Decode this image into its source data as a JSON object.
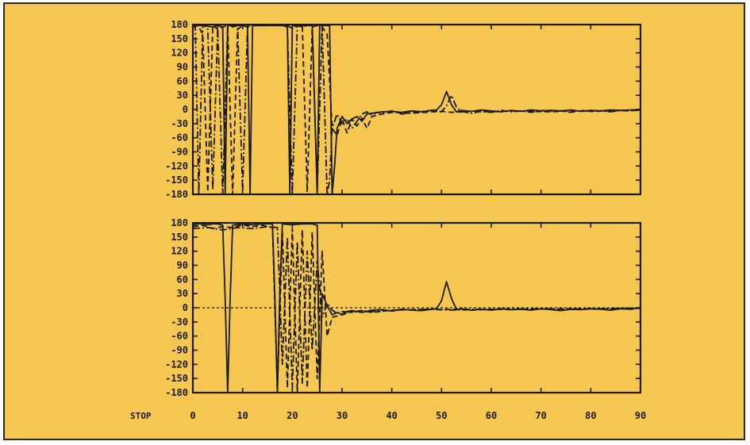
{
  "colors": {
    "background": "#f5c650",
    "ink": "#1b1b1b"
  },
  "status_label": "STOP",
  "chart_data": [
    {
      "type": "line",
      "title": "",
      "xlabel": "",
      "ylabel": "",
      "xlim": [
        0,
        90
      ],
      "ylim": [
        -180,
        180
      ],
      "x_ticks": [
        0,
        10,
        20,
        30,
        40,
        50,
        60,
        70,
        80,
        90
      ],
      "y_ticks": [
        180,
        150,
        120,
        90,
        60,
        30,
        0,
        -30,
        -60,
        -90,
        -120,
        -150,
        -180
      ],
      "y_tick_labels": [
        "180",
        "150",
        "120",
        "90",
        "60",
        "30",
        "0",
        "-30",
        "-60",
        "-90",
        "-120",
        "-150",
        "-180"
      ],
      "x_tick_labels_visible": false,
      "grid": false,
      "series": [
        {
          "style": "dash-dot",
          "x": [
            0,
            0.5,
            1.2,
            2,
            3,
            4,
            5,
            6,
            7,
            8,
            9,
            10,
            11,
            12,
            14,
            16,
            18,
            19,
            20,
            21,
            22,
            23,
            24,
            25,
            26,
            27,
            27.5,
            28,
            29,
            30,
            31,
            32,
            33,
            34,
            35,
            36,
            37,
            38,
            40,
            42,
            44,
            46,
            48,
            50,
            51,
            52,
            53,
            54,
            56,
            58,
            60,
            62,
            64,
            66,
            68,
            70,
            72,
            74,
            76,
            78,
            80,
            82,
            84,
            86,
            88,
            90
          ],
          "y": [
            180,
            175,
            -180,
            180,
            170,
            -170,
            175,
            -180,
            180,
            175,
            178,
            -175,
            178,
            180,
            178,
            180,
            178,
            175,
            -180,
            178,
            175,
            178,
            180,
            -175,
            178,
            -180,
            -150,
            -40,
            -10,
            -30,
            -20,
            -40,
            -25,
            -10,
            -5,
            -12,
            -6,
            -8,
            -3,
            -10,
            -6,
            -4,
            -2,
            -5,
            8,
            30,
            5,
            -4,
            -8,
            -4,
            -6,
            -2,
            -5,
            -3,
            -6,
            -2,
            -4,
            -3,
            -6,
            -2,
            -4,
            -3,
            -5,
            -2,
            -3,
            -1
          ]
        },
        {
          "style": "dashed",
          "x": [
            0,
            1,
            2,
            3,
            4,
            5,
            6,
            7,
            8,
            9,
            10,
            11,
            12,
            14,
            16,
            18,
            19,
            20,
            21,
            22,
            23,
            24,
            25,
            26,
            27,
            28,
            29,
            30,
            31,
            32,
            33,
            34,
            35,
            36,
            38,
            40,
            44,
            48,
            50,
            52,
            56,
            60,
            64,
            68,
            72,
            76,
            80,
            84,
            88,
            90
          ],
          "y": [
            175,
            178,
            160,
            -175,
            178,
            170,
            175,
            178,
            -180,
            170,
            178,
            175,
            178,
            178,
            180,
            178,
            178,
            172,
            178,
            178,
            -175,
            175,
            178,
            175,
            160,
            -40,
            -55,
            -20,
            -50,
            -20,
            -35,
            -18,
            -40,
            -15,
            -10,
            -6,
            -8,
            -5,
            -4,
            -6,
            -4,
            -5,
            -3,
            -4,
            -5,
            -3,
            -4,
            -3,
            -2,
            -2
          ]
        },
        {
          "style": "solid",
          "x": [
            0,
            2,
            4,
            5,
            6,
            6.5,
            7,
            8,
            10,
            11,
            11.5,
            12,
            14,
            16,
            18,
            19,
            19.5,
            20,
            21,
            22,
            24,
            25,
            25.5,
            26,
            27,
            27.5,
            28,
            28.5,
            29,
            30,
            31,
            32,
            33,
            34,
            35,
            36,
            38,
            40,
            42,
            44,
            46,
            48,
            49,
            50,
            51,
            52,
            53,
            54,
            56,
            58,
            60,
            62,
            64,
            66,
            68,
            70,
            72,
            74,
            76,
            78,
            80,
            82,
            84,
            86,
            88,
            90
          ],
          "y": [
            178,
            178,
            175,
            178,
            175,
            -180,
            178,
            178,
            178,
            175,
            -180,
            178,
            178,
            178,
            178,
            178,
            -180,
            178,
            178,
            178,
            178,
            -180,
            178,
            178,
            178,
            178,
            -180,
            -120,
            -40,
            -15,
            -30,
            -20,
            -15,
            -25,
            -10,
            -8,
            -5,
            -4,
            -6,
            -3,
            -5,
            -2,
            -1,
            10,
            38,
            10,
            -5,
            -2,
            -4,
            -1,
            -3,
            -5,
            -2,
            -4,
            -1,
            -3,
            -2,
            -3,
            -1,
            -4,
            -2,
            -3,
            -1,
            -2,
            -1,
            0
          ]
        }
      ]
    },
    {
      "type": "line",
      "title": "",
      "xlabel": "",
      "ylabel": "",
      "xlim": [
        0,
        90
      ],
      "ylim": [
        -180,
        180
      ],
      "x_ticks": [
        0,
        10,
        20,
        30,
        40,
        50,
        60,
        70,
        80,
        90
      ],
      "x_tick_labels": [
        "0",
        "10",
        "20",
        "30",
        "40",
        "50",
        "60",
        "70",
        "80",
        "90"
      ],
      "y_ticks": [
        180,
        150,
        120,
        90,
        60,
        30,
        0,
        -30,
        -60,
        -90,
        -120,
        -150,
        -180
      ],
      "y_tick_labels": [
        "180",
        "150",
        "120",
        "90",
        "60",
        "30",
        "0",
        "-30",
        "-60",
        "-90",
        "-120",
        "-150",
        "-180"
      ],
      "grid": false,
      "reference_line_y": 0,
      "series": [
        {
          "style": "solid",
          "x": [
            0,
            1,
            2,
            3,
            4,
            5,
            6,
            6.5,
            7,
            7.5,
            8,
            10,
            12,
            14,
            16,
            16.5,
            17,
            17.5,
            18,
            20,
            22,
            24,
            25,
            25.5,
            26,
            27,
            28,
            29,
            30,
            31,
            32,
            34,
            36,
            38,
            40,
            42,
            44,
            46,
            48,
            49,
            50,
            51,
            52,
            53,
            54,
            56,
            58,
            60,
            62,
            64,
            66,
            68,
            70,
            72,
            74,
            76,
            78,
            80,
            82,
            84,
            86,
            88,
            90
          ],
          "y": [
            175,
            178,
            178,
            176,
            178,
            178,
            175,
            20,
            -180,
            20,
            175,
            178,
            176,
            178,
            178,
            20,
            -180,
            40,
            178,
            176,
            178,
            178,
            175,
            -180,
            30,
            5,
            -15,
            -10,
            -14,
            -8,
            -6,
            -10,
            -5,
            -4,
            -7,
            -3,
            -5,
            -6,
            -3,
            -2,
            15,
            55,
            20,
            -4,
            -2,
            -5,
            -3,
            -5,
            -2,
            -4,
            -3,
            -5,
            -2,
            -4,
            -6,
            -3,
            -4,
            -2,
            -3,
            -5,
            -2,
            -3,
            0
          ]
        },
        {
          "style": "dashed",
          "x": [
            0,
            2,
            4,
            6,
            8,
            10,
            12,
            14,
            16,
            17,
            18,
            19,
            20,
            21,
            22,
            23,
            24,
            25,
            26,
            27,
            28,
            30,
            32,
            34,
            36,
            40,
            44,
            48,
            50,
            52,
            56,
            60,
            64,
            68,
            72,
            76,
            80,
            84,
            88,
            90
          ],
          "y": [
            172,
            175,
            168,
            172,
            170,
            176,
            172,
            175,
            170,
            -175,
            160,
            -170,
            168,
            -180,
            165,
            -170,
            160,
            -150,
            120,
            -60,
            -20,
            -15,
            -8,
            -6,
            -10,
            -5,
            -4,
            -3,
            -4,
            -3,
            -5,
            -3,
            -4,
            -2,
            -3,
            -2,
            -3,
            -2,
            -1,
            -1
          ]
        },
        {
          "style": "dash-dot",
          "x": [
            0,
            3,
            6,
            9,
            12,
            15,
            17,
            18,
            19,
            20,
            21,
            22,
            23,
            24,
            25,
            26,
            27,
            28,
            29,
            30,
            32,
            34,
            36,
            40,
            44,
            48,
            52,
            56,
            60,
            64,
            68,
            72,
            76,
            80,
            84,
            88,
            90
          ],
          "y": [
            168,
            170,
            165,
            170,
            168,
            172,
            170,
            -120,
            150,
            -170,
            140,
            -160,
            120,
            -90,
            100,
            -20,
            10,
            -5,
            -12,
            -8,
            -10,
            -6,
            -8,
            -5,
            -4,
            -3,
            -5,
            -3,
            -4,
            -2,
            -3,
            -2,
            -3,
            -2,
            -2,
            -1,
            -1
          ]
        }
      ]
    }
  ]
}
